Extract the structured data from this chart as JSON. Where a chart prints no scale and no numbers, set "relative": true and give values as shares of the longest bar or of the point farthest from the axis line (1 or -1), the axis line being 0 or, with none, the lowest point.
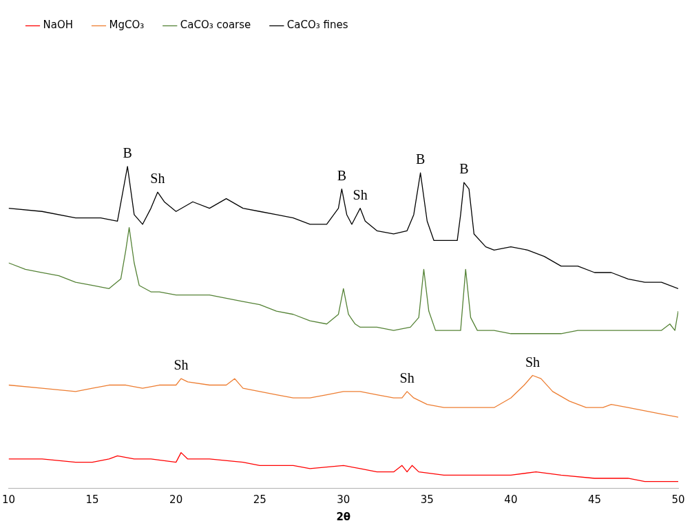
{
  "chart_data": {
    "type": "line",
    "xlabel": "2θ",
    "xlim": [
      10,
      50
    ],
    "xticks": [
      10,
      15,
      20,
      25,
      30,
      35,
      40,
      45,
      50
    ],
    "relative": true,
    "legend": "top",
    "grid": false,
    "marker": "none",
    "line_style": "solid",
    "series": [
      {
        "name": "NaOH",
        "color": "#ff0000",
        "x": [
          10,
          12,
          14,
          15,
          16,
          16.5,
          17.5,
          18.5,
          20,
          20.3,
          20.7,
          22,
          24,
          25,
          27,
          28,
          30,
          31,
          32,
          33,
          33.5,
          33.8,
          34.1,
          34.5,
          36,
          38,
          40,
          41.5,
          43,
          45,
          47,
          48,
          50
        ],
        "values": [
          0.09,
          0.09,
          0.08,
          0.08,
          0.09,
          0.1,
          0.09,
          0.09,
          0.08,
          0.11,
          0.09,
          0.09,
          0.08,
          0.07,
          0.07,
          0.06,
          0.07,
          0.06,
          0.05,
          0.05,
          0.07,
          0.05,
          0.07,
          0.05,
          0.04,
          0.04,
          0.04,
          0.05,
          0.04,
          0.03,
          0.03,
          0.02,
          0.02
        ]
      },
      {
        "name": "MgCO₃",
        "color": "#ed7d31",
        "x": [
          10,
          12,
          14,
          15,
          16,
          17,
          18,
          19,
          20,
          20.3,
          20.7,
          22,
          23,
          23.5,
          24,
          25,
          26,
          27,
          28,
          29,
          30,
          31,
          32,
          33,
          33.5,
          33.8,
          34.2,
          35,
          36,
          37,
          38,
          39,
          40,
          40.8,
          41.3,
          41.8,
          42.5,
          43.5,
          44.5,
          45.5,
          46,
          47,
          48,
          49,
          50
        ],
        "values": [
          0.32,
          0.31,
          0.3,
          0.31,
          0.32,
          0.32,
          0.31,
          0.32,
          0.32,
          0.34,
          0.33,
          0.32,
          0.32,
          0.34,
          0.31,
          0.3,
          0.29,
          0.28,
          0.28,
          0.29,
          0.3,
          0.3,
          0.29,
          0.28,
          0.28,
          0.3,
          0.28,
          0.26,
          0.25,
          0.25,
          0.25,
          0.25,
          0.28,
          0.32,
          0.35,
          0.34,
          0.3,
          0.27,
          0.25,
          0.25,
          0.26,
          0.25,
          0.24,
          0.23,
          0.22
        ]
      },
      {
        "name": "CaCO₃ coarse",
        "color": "#548235",
        "x": [
          10,
          11,
          12,
          13,
          14,
          15,
          16,
          16.7,
          17,
          17.2,
          17.5,
          17.8,
          18.5,
          19,
          20,
          21,
          22,
          23,
          24,
          25,
          26,
          27,
          28,
          29,
          29.7,
          30,
          30.3,
          30.7,
          31,
          32,
          33,
          34,
          34.5,
          34.8,
          35.1,
          35.5,
          36,
          37,
          37.3,
          37.6,
          38,
          39,
          40,
          41,
          42,
          43,
          44,
          45,
          46,
          47,
          48,
          49,
          49.5,
          49.8,
          50
        ],
        "values": [
          0.7,
          0.68,
          0.67,
          0.66,
          0.64,
          0.63,
          0.62,
          0.65,
          0.74,
          0.81,
          0.7,
          0.63,
          0.61,
          0.61,
          0.6,
          0.6,
          0.6,
          0.59,
          0.58,
          0.57,
          0.55,
          0.54,
          0.52,
          0.51,
          0.54,
          0.62,
          0.54,
          0.51,
          0.5,
          0.5,
          0.49,
          0.5,
          0.53,
          0.68,
          0.55,
          0.49,
          0.49,
          0.49,
          0.68,
          0.53,
          0.49,
          0.49,
          0.48,
          0.48,
          0.48,
          0.48,
          0.49,
          0.49,
          0.49,
          0.49,
          0.49,
          0.49,
          0.51,
          0.49,
          0.55
        ]
      },
      {
        "name": "CaCO₃ fines",
        "color": "#000000",
        "x": [
          10,
          12,
          14,
          15.5,
          16.5,
          17.1,
          17.5,
          18,
          18.5,
          18.9,
          19.3,
          20,
          21,
          22,
          23,
          24,
          25,
          26,
          27,
          28,
          29,
          29.7,
          29.9,
          30.2,
          30.5,
          30.8,
          31,
          31.3,
          32,
          33,
          33.8,
          34.2,
          34.6,
          35,
          35.4,
          36,
          36.8,
          37,
          37.2,
          37.5,
          37.8,
          38.5,
          39,
          40,
          41,
          42,
          43,
          44,
          45,
          46,
          47,
          48,
          49,
          50
        ],
        "values": [
          0.87,
          0.86,
          0.84,
          0.84,
          0.83,
          1,
          0.85,
          0.82,
          0.87,
          0.92,
          0.89,
          0.86,
          0.89,
          0.87,
          0.9,
          0.87,
          0.86,
          0.85,
          0.84,
          0.82,
          0.82,
          0.87,
          0.93,
          0.85,
          0.82,
          0.85,
          0.87,
          0.83,
          0.8,
          0.79,
          0.8,
          0.85,
          0.98,
          0.83,
          0.77,
          0.77,
          0.77,
          0.85,
          0.95,
          0.93,
          0.79,
          0.75,
          0.74,
          0.75,
          0.74,
          0.72,
          0.69,
          0.69,
          0.67,
          0.67,
          0.65,
          0.64,
          0.64,
          0.62
        ]
      }
    ],
    "annotations": [
      {
        "text": "B",
        "x": 17.1,
        "y": 1
      },
      {
        "text": "Sh",
        "x": 18.9,
        "y": 0.92
      },
      {
        "text": "B",
        "x": 29.9,
        "y": 0.93
      },
      {
        "text": "Sh",
        "x": 31,
        "y": 0.87
      },
      {
        "text": "B",
        "x": 34.6,
        "y": 0.98
      },
      {
        "text": "B",
        "x": 37.2,
        "y": 0.95
      },
      {
        "text": "Sh",
        "x": 20.3,
        "y": 0.34
      },
      {
        "text": "Sh",
        "x": 33.8,
        "y": 0.3
      },
      {
        "text": "Sh",
        "x": 41.3,
        "y": 0.35
      }
    ]
  }
}
